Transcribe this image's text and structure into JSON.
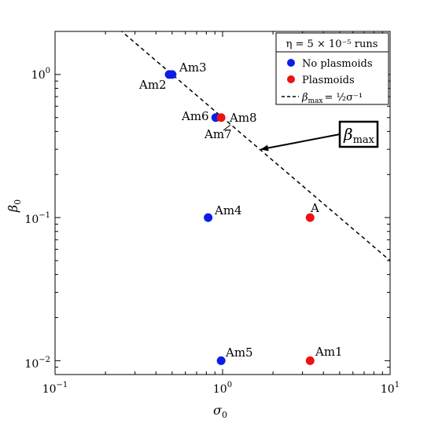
{
  "chart_data": {
    "type": "scatter",
    "title": "",
    "xlabel": "σ",
    "xlabel_sub": "0",
    "ylabel": "β",
    "ylabel_sub": "0",
    "xscale": "log",
    "yscale": "log",
    "xlim": [
      0.1,
      10
    ],
    "ylim": [
      0.008,
      2.0
    ],
    "grid": false,
    "x_ticks": [
      {
        "value": 0.1,
        "base": "10",
        "exp": "−1"
      },
      {
        "value": 1,
        "base": "10",
        "exp": "0"
      },
      {
        "value": 10,
        "base": "10",
        "exp": "1"
      }
    ],
    "y_ticks": [
      {
        "value": 0.01,
        "base": "10",
        "exp": "−2"
      },
      {
        "value": 0.1,
        "base": "10",
        "exp": "−1"
      },
      {
        "value": 1,
        "base": "10",
        "exp": "0"
      }
    ],
    "series": [
      {
        "name": "No plasmoids",
        "color": "#0a1fe6",
        "points": [
          {
            "x": 0.48,
            "y": 1.0,
            "label": "Am2"
          },
          {
            "x": 0.5,
            "y": 1.0,
            "label": "Am3"
          },
          {
            "x": 0.91,
            "y": 0.5,
            "label": "Am6"
          },
          {
            "x": 0.82,
            "y": 0.1,
            "label": "Am4"
          },
          {
            "x": 0.98,
            "y": 0.01,
            "label": "Am5"
          }
        ]
      },
      {
        "name": "Plasmoids",
        "color": "#ee1111",
        "points": [
          {
            "x": 0.98,
            "y": 0.5,
            "label": "Am8"
          },
          {
            "x": 3.33,
            "y": 0.1,
            "label": "A"
          },
          {
            "x": 3.33,
            "y": 0.01,
            "label": "Am1"
          }
        ]
      }
    ],
    "beta_max_line": {
      "equation": "β = σ⁻¹ / 2",
      "style": "dashed",
      "color": "#000000"
    },
    "legend": {
      "placement": "top-right",
      "title": "η = 5 × 10⁻⁵ runs",
      "entries": [
        "No plasmoids",
        "Plasmoids",
        "β_max = ½σ⁻¹"
      ],
      "line_entry_prefix": "β",
      "line_entry_sub": "max",
      "line_entry_rhs": "= ½σ⁻¹"
    },
    "annotation": {
      "text": "β",
      "sub": "max",
      "arrow_to": {
        "x": 1.7,
        "y": 0.3
      }
    },
    "extra_labels": [
      {
        "text": "Am7",
        "near": "Am8"
      }
    ]
  }
}
